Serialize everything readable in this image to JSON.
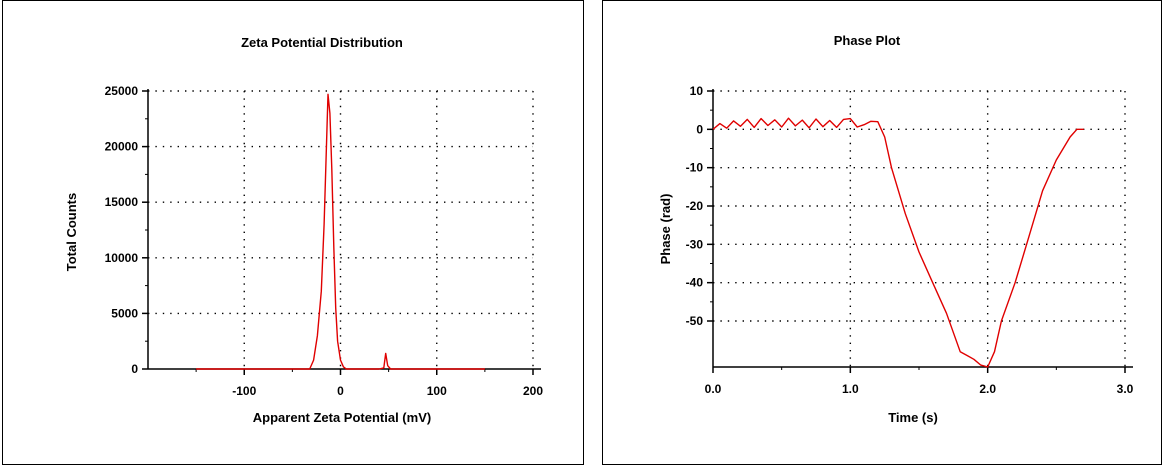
{
  "chart_data": [
    {
      "type": "line",
      "title": "Zeta Potential Distribution",
      "xlabel": "Apparent Zeta Potential (mV)",
      "ylabel": "Total Counts",
      "xlim": [
        -200,
        200
      ],
      "ylim": [
        0,
        25000
      ],
      "xticks": [
        -100,
        0,
        100,
        200
      ],
      "xtick_labels": [
        "-100",
        "0",
        "100",
        "200"
      ],
      "yticks": [
        0,
        5000,
        10000,
        15000,
        20000,
        25000
      ],
      "ytick_labels": [
        "0",
        "5000",
        "10000",
        "15000",
        "20000",
        "25000"
      ],
      "grid": true,
      "line_color": "#e00000",
      "series": [
        {
          "x": [
            -150,
            -100,
            -50,
            -32,
            -28,
            -24,
            -20,
            -17,
            -15,
            -13,
            -11,
            -9,
            -7,
            -5,
            -3,
            0,
            3,
            6,
            10,
            20,
            40,
            45,
            47,
            49,
            52,
            60,
            100,
            150
          ],
          "y": [
            0,
            0,
            0,
            0,
            800,
            3000,
            7000,
            13000,
            19000,
            24700,
            23000,
            18000,
            11000,
            5500,
            2500,
            800,
            200,
            0,
            0,
            0,
            0,
            100,
            1400,
            300,
            0,
            0,
            0,
            0
          ]
        }
      ]
    },
    {
      "type": "line",
      "title": "Phase Plot",
      "xlabel": "Time (s)",
      "ylabel": "Phase (rad)",
      "xlim": [
        0,
        3
      ],
      "ylim": [
        -62,
        10
      ],
      "xticks": [
        0,
        1,
        2,
        3
      ],
      "xtick_labels": [
        "0.0",
        "1.0",
        "2.0",
        "3.0"
      ],
      "yticks": [
        10,
        0,
        -10,
        -20,
        -30,
        -40,
        -50
      ],
      "ytick_labels": [
        "10",
        "0",
        "-10",
        "-20",
        "-30",
        "-40",
        "-50"
      ],
      "grid": true,
      "line_color": "#e00000",
      "series": [
        {
          "x": [
            0,
            0.05,
            0.1,
            0.15,
            0.2,
            0.25,
            0.3,
            0.35,
            0.4,
            0.45,
            0.5,
            0.55,
            0.6,
            0.65,
            0.7,
            0.75,
            0.8,
            0.85,
            0.9,
            0.95,
            1.0,
            1.05,
            1.1,
            1.15,
            1.2,
            1.25,
            1.3,
            1.4,
            1.5,
            1.6,
            1.7,
            1.8,
            1.85,
            1.9,
            1.95,
            2.0,
            2.05,
            2.1,
            2.2,
            2.3,
            2.4,
            2.5,
            2.6,
            2.65,
            2.7
          ],
          "y": [
            0,
            1.5,
            0.3,
            2.2,
            0.8,
            2.6,
            0.5,
            2.8,
            1.0,
            2.5,
            0.6,
            2.9,
            0.9,
            2.4,
            0.4,
            2.7,
            0.7,
            2.3,
            0.5,
            2.6,
            2.8,
            0.6,
            1.2,
            2.1,
            2.0,
            -2,
            -10,
            -22,
            -32,
            -40,
            -48,
            -58,
            -59,
            -60,
            -61.5,
            -62,
            -58,
            -50,
            -40,
            -28,
            -16,
            -8,
            -2,
            0,
            0
          ]
        }
      ]
    }
  ]
}
